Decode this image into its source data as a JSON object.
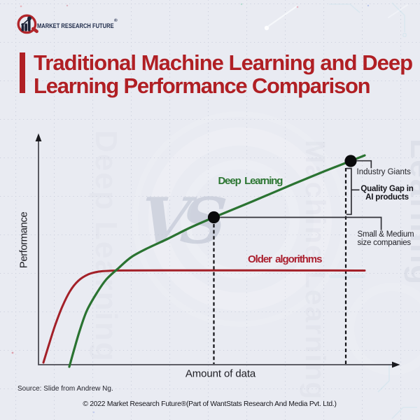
{
  "header": {
    "brand": "MARKET RESEARCH FUTURE",
    "registered": "®"
  },
  "title": {
    "line1": "Traditional Machine Learning and Deep",
    "line2": "Learning Performance Comparison",
    "color": "#b01f24"
  },
  "chart_data": {
    "type": "line",
    "title": "Traditional Machine Learning and Deep Learning Performance Comparison",
    "xlabel": "Amount of data",
    "ylabel": "Performance",
    "x_range": [
      0,
      10
    ],
    "y_range": [
      0,
      10
    ],
    "grid": "dotted",
    "legend_position": "inline-labels",
    "series": [
      {
        "name": "Deep Learning",
        "color": "#2a7331",
        "points": [
          [
            0.854,
            -0.092
          ],
          [
            0.99,
            0.675
          ],
          [
            1.146,
            1.503
          ],
          [
            1.34,
            2.362
          ],
          [
            1.612,
            3.129
          ],
          [
            1.884,
            3.742
          ],
          [
            2.233,
            4.252
          ],
          [
            2.583,
            4.724
          ],
          [
            3.049,
            5.123
          ],
          [
            3.592,
            5.521
          ],
          [
            4.175,
            5.982
          ],
          [
            4.864,
            6.457
          ],
          [
            5.922,
            7.147
          ],
          [
            7.087,
            7.929
          ],
          [
            7.961,
            8.497
          ],
          [
            8.66,
            8.926
          ],
          [
            9.049,
            9.172
          ]
        ]
      },
      {
        "name": "Older algorithms",
        "color": "#a32028",
        "points": [
          [
            0.136,
            0.092
          ],
          [
            0.291,
            0.89
          ],
          [
            0.466,
            1.748
          ],
          [
            0.66,
            2.546
          ],
          [
            0.874,
            3.221
          ],
          [
            1.107,
            3.681
          ],
          [
            1.379,
            3.957
          ],
          [
            1.67,
            4.08
          ],
          [
            2.0,
            4.117
          ],
          [
            2.427,
            4.129
          ],
          [
            3.398,
            4.135
          ],
          [
            4.757,
            4.135
          ],
          [
            6.311,
            4.132
          ],
          [
            7.67,
            4.129
          ],
          [
            9.049,
            4.126
          ]
        ]
      }
    ],
    "markers": [
      {
        "label": "Small & Medium size companies",
        "x": 4.864,
        "y": 6.457
      },
      {
        "label": "Industry Giants",
        "x": 8.66,
        "y": 8.926
      }
    ],
    "annotations": [
      "Quality Gap in AI products"
    ]
  },
  "labels": {
    "deep_learning": "Deep Learning",
    "older_algorithms": "Older algorithms",
    "industry_giants": "Industry Giants",
    "quality_gap_line1": "Quality Gap in",
    "quality_gap_line2": "AI products",
    "small_medium_line1": "Small & Medium",
    "small_medium_line2": "size companies",
    "performance": "Performance",
    "amount_of_data": "Amount of data"
  },
  "footer": {
    "source": "Source: Slide from Andrew Ng.",
    "copyright": "© 2022 Market Research Future®(Part of WantStats Research And Media Pvt. Ltd.)"
  },
  "watermark": {
    "vs": "VS",
    "left_text": "Deep Learning",
    "right_text": "Machine Learning",
    "edge_text": "Learning"
  }
}
